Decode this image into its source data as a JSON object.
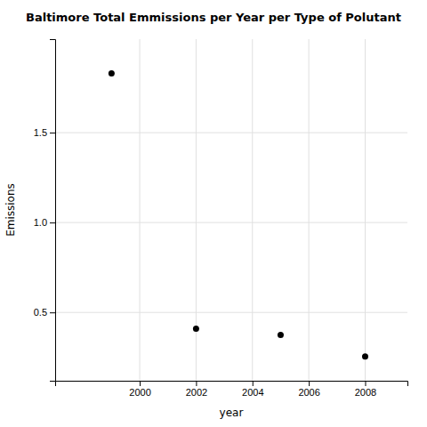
{
  "chart_data": {
    "type": "scatter",
    "title": "Baltimore Total Emmissions per Year per Type of Polutant",
    "x_label": "year",
    "y_label": "Emissions",
    "x": [
      1999,
      2002,
      2005,
      2008
    ],
    "values": [
      1.83,
      0.41,
      0.375,
      0.255
    ],
    "color": "#000000",
    "marker": "circle",
    "xlim": [
      1997.0,
      2009.5
    ],
    "ylim": [
      0.12,
      2.02
    ],
    "xticks": [
      2000,
      2002,
      2004,
      2006,
      2008
    ],
    "yticks": [
      0.5,
      {
        "value": 1.0,
        "label": "1.0"
      },
      1.5
    ],
    "grid": true
  }
}
